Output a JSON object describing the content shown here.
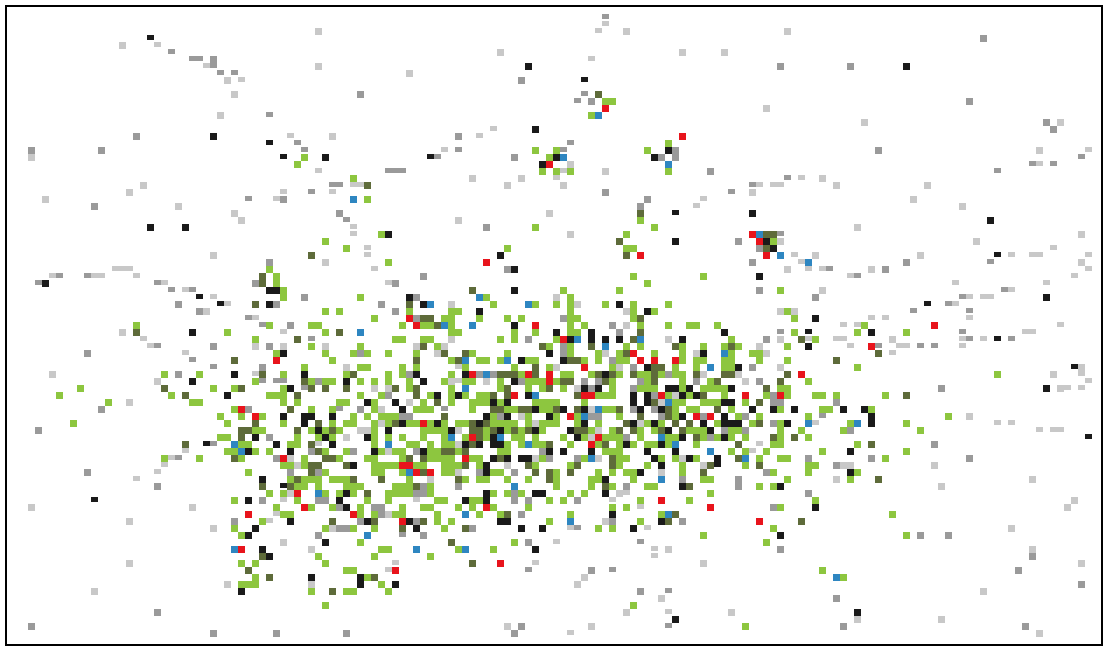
{
  "colors": {
    "background": "#ffffff",
    "border": "#000000",
    "green": "#8dc63f",
    "olive": "#5e6b3a",
    "dark": "#1a1a1a",
    "gray": "#9a9a9a",
    "lightgray": "#c8c8c8",
    "red": "#e8141c",
    "blue": "#2e86c1"
  },
  "legend_entries": []
}
